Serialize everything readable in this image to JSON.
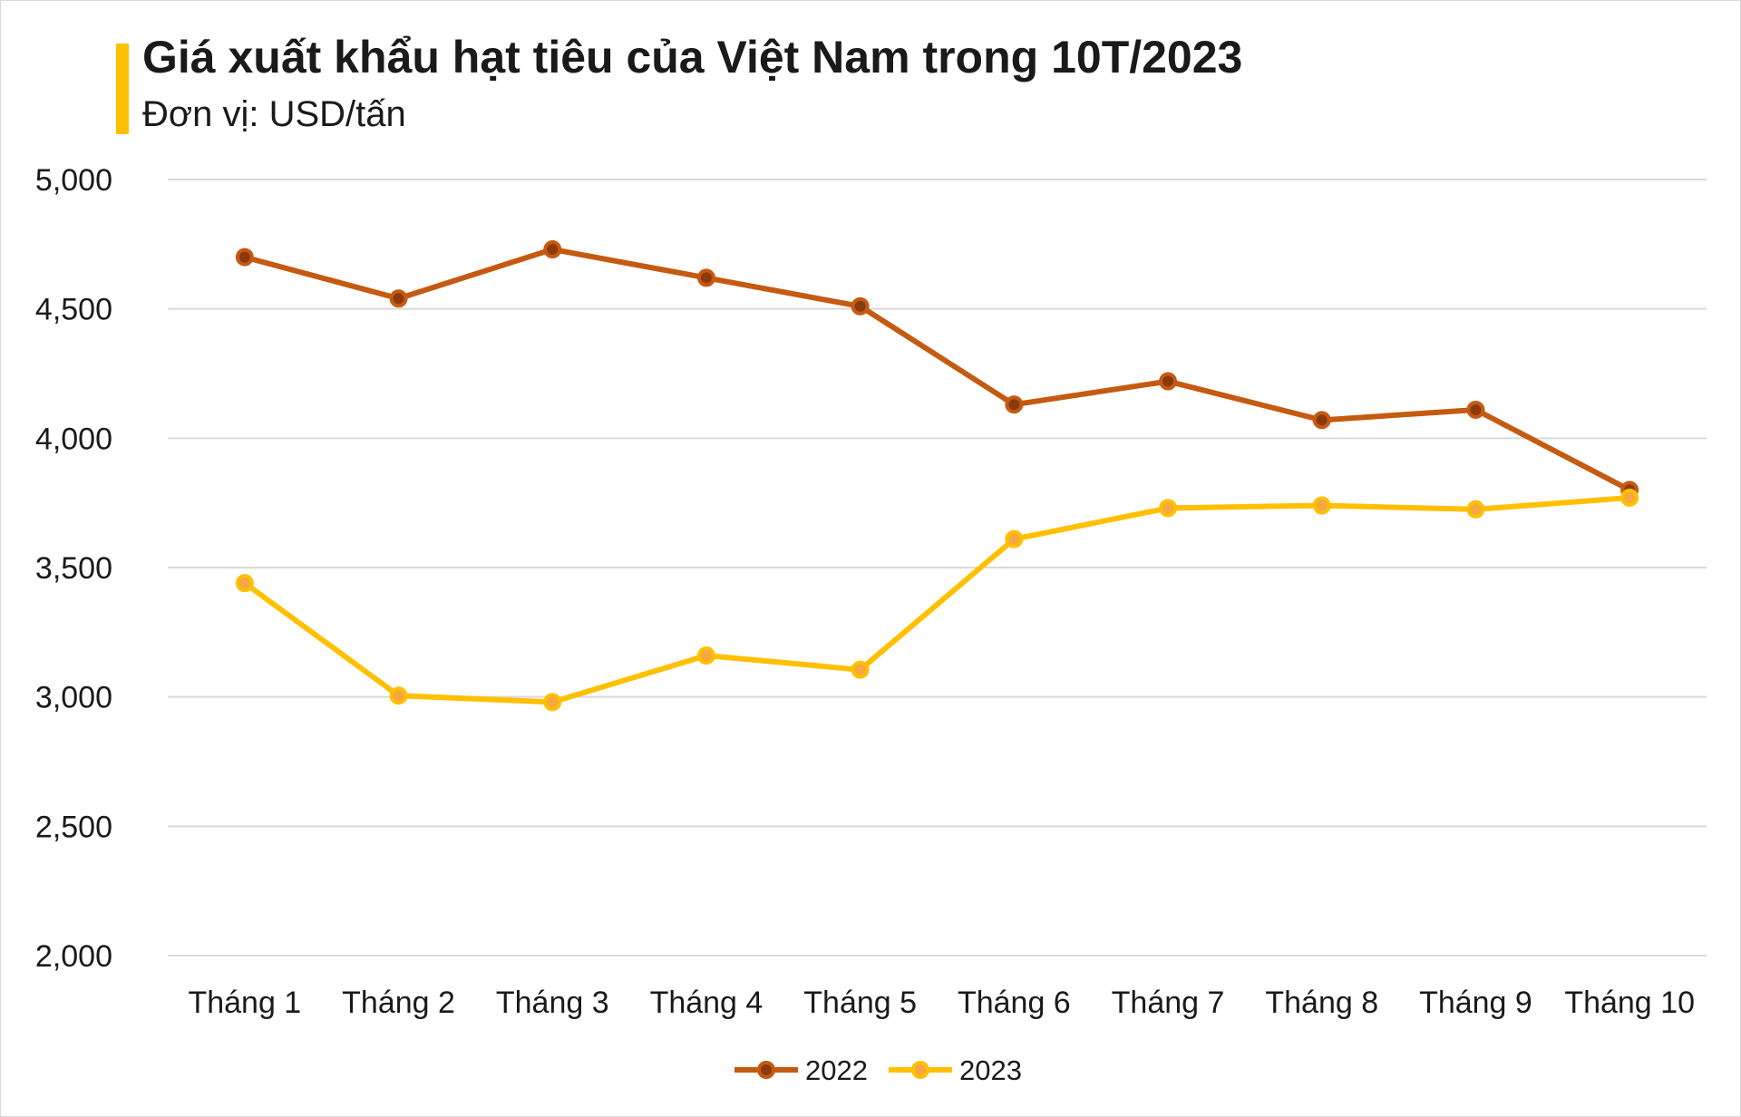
{
  "colors": {
    "accent": "#FFC000",
    "series_2022": "#C55A11",
    "series_2023": "#FFC000",
    "grid": "#d9d9d9",
    "text": "#1a1a1a"
  },
  "chart_data": {
    "type": "line",
    "title": "Giá xuất khẩu hạt tiêu của Việt Nam trong 10T/2023",
    "subtitle": "Đơn vị: USD/tấn",
    "categories": [
      "Tháng 1",
      "Tháng 2",
      "Tháng 3",
      "Tháng 4",
      "Tháng 5",
      "Tháng 6",
      "Tháng 7",
      "Tháng 8",
      "Tháng 9",
      "Tháng 10"
    ],
    "ylim": [
      2000,
      5000
    ],
    "yticks": [
      2000,
      2500,
      3000,
      3500,
      4000,
      4500,
      5000
    ],
    "ytick_labels": [
      "2,000",
      "2,500",
      "3,000",
      "3,500",
      "4,000",
      "4,500",
      "5,000"
    ],
    "grid": true,
    "legend": "bottom",
    "series": [
      {
        "name": "2022",
        "color": "#C55A11",
        "values": [
          4700,
          4540,
          4730,
          4620,
          4510,
          4130,
          4220,
          4070,
          4110,
          3800
        ]
      },
      {
        "name": "2023",
        "color": "#FFC000",
        "values": [
          3440,
          3005,
          2980,
          3160,
          3105,
          3610,
          3730,
          3740,
          3725,
          3770
        ]
      }
    ]
  }
}
